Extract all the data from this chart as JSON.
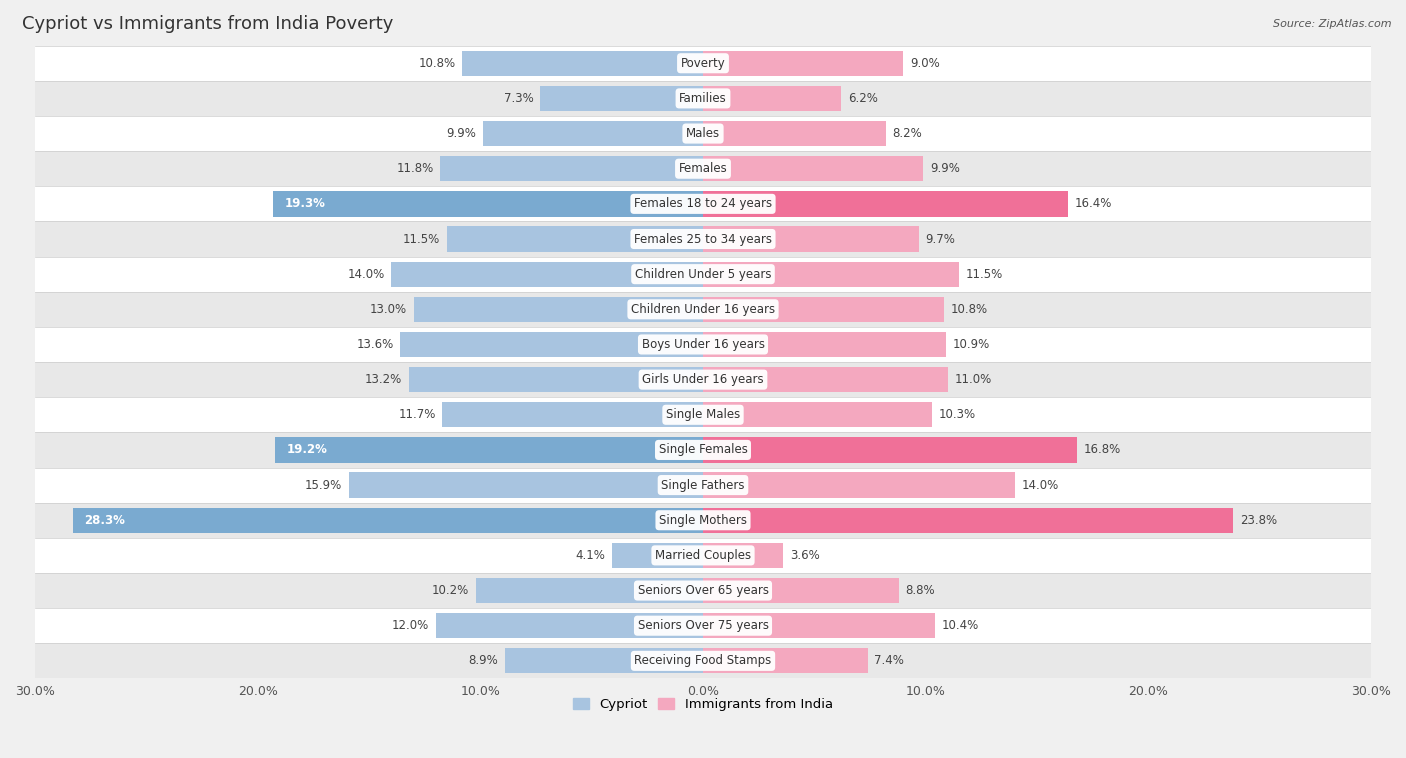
{
  "title": "Cypriot vs Immigrants from India Poverty",
  "source": "Source: ZipAtlas.com",
  "categories": [
    "Poverty",
    "Families",
    "Males",
    "Females",
    "Females 18 to 24 years",
    "Females 25 to 34 years",
    "Children Under 5 years",
    "Children Under 16 years",
    "Boys Under 16 years",
    "Girls Under 16 years",
    "Single Males",
    "Single Females",
    "Single Fathers",
    "Single Mothers",
    "Married Couples",
    "Seniors Over 65 years",
    "Seniors Over 75 years",
    "Receiving Food Stamps"
  ],
  "cypriot": [
    10.8,
    7.3,
    9.9,
    11.8,
    19.3,
    11.5,
    14.0,
    13.0,
    13.6,
    13.2,
    11.7,
    19.2,
    15.9,
    28.3,
    4.1,
    10.2,
    12.0,
    8.9
  ],
  "india": [
    9.0,
    6.2,
    8.2,
    9.9,
    16.4,
    9.7,
    11.5,
    10.8,
    10.9,
    11.0,
    10.3,
    16.8,
    14.0,
    23.8,
    3.6,
    8.8,
    10.4,
    7.4
  ],
  "cypriot_color": "#a8c4e0",
  "india_color": "#f4a8bf",
  "highlight_cypriot_color": "#7aaad0",
  "highlight_india_color": "#f07098",
  "highlight_rows": [
    4,
    11,
    13
  ],
  "bar_height": 0.72,
  "xlim": 30.0,
  "background_color": "#f0f0f0",
  "row_bg_even": "#ffffff",
  "row_bg_odd": "#e8e8e8",
  "title_fontsize": 13,
  "label_fontsize": 8.5,
  "value_fontsize": 8.5,
  "tick_fontsize": 9,
  "legend_fontsize": 9.5
}
